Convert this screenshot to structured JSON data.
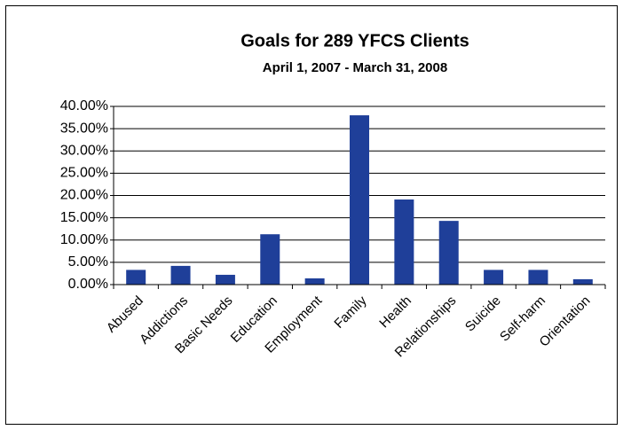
{
  "chart_data": {
    "type": "bar",
    "title": "Goals for 289 YFCS Clients",
    "subtitle": "April 1, 2007 - March 31, 2008",
    "categories": [
      "Abused",
      "Addictions",
      "Basic Needs",
      "Education",
      "Employment",
      "Family",
      "Health",
      "Relationships",
      "Suicide",
      "Self-harm",
      "Orientation"
    ],
    "values": [
      3.3,
      4.2,
      2.2,
      11.3,
      1.4,
      38.0,
      19.1,
      14.3,
      3.3,
      3.3,
      1.2
    ],
    "color": "#1f3f99",
    "ylim": [
      0,
      40
    ],
    "yticks": [
      {
        "value": 0,
        "label": "0.00%"
      },
      {
        "value": 5,
        "label": "5.00%"
      },
      {
        "value": 10,
        "label": "10.00%"
      },
      {
        "value": 15,
        "label": "15.00%"
      },
      {
        "value": 20,
        "label": "20.00%"
      },
      {
        "value": 25,
        "label": "25.00%"
      },
      {
        "value": 30,
        "label": "30.00%"
      },
      {
        "value": 35,
        "label": "35.00%"
      },
      {
        "value": 40,
        "label": "40.00%"
      }
    ],
    "grid": true
  }
}
